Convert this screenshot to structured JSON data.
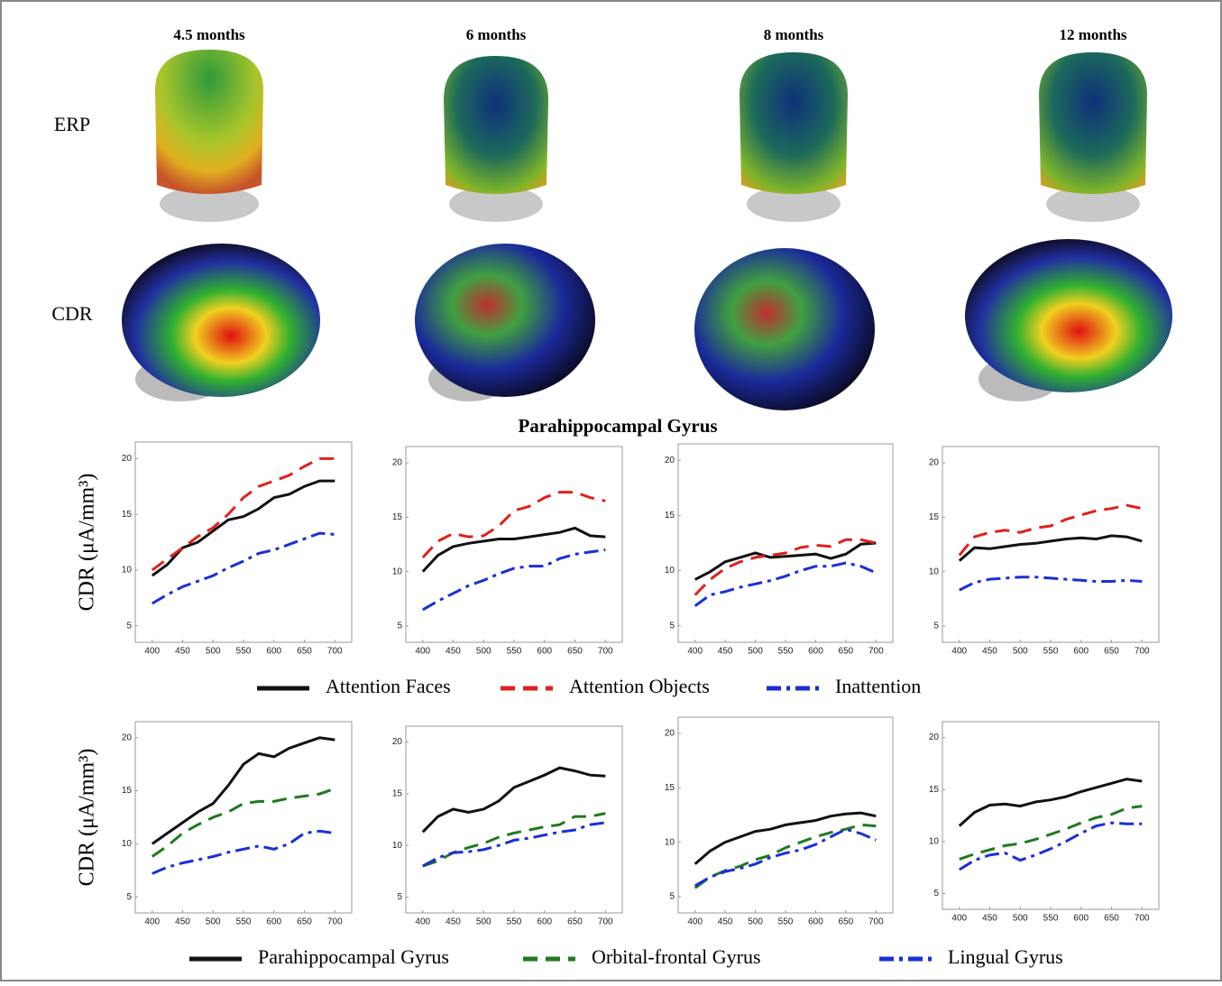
{
  "columns": [
    "4.5 months",
    "6 months",
    "8 months",
    "12 months"
  ],
  "row_labels": [
    "ERP",
    "CDR"
  ],
  "section_title": "Parahippocampal Gyrus",
  "chart_data": [
    {
      "type": "line",
      "y_label": "CDR (μA/mm³)",
      "x": [
        400,
        425,
        450,
        475,
        500,
        525,
        550,
        575,
        600,
        625,
        650,
        675,
        700
      ],
      "xlim": [
        390,
        710
      ],
      "xticks": [
        400,
        450,
        500,
        550,
        600,
        650,
        700
      ],
      "ylim": [
        4,
        21
      ],
      "yticks": [
        5,
        10,
        15,
        20
      ],
      "series": [
        {
          "name": "Attention Faces",
          "color": "#111111",
          "style": "solid",
          "values": [
            9.5,
            10.5,
            12,
            12.5,
            13.5,
            14.5,
            14.8,
            15.5,
            16.5,
            16.8,
            17.5,
            18,
            18
          ]
        },
        {
          "name": "Attention Objects",
          "color": "#e0201c",
          "style": "dashed",
          "values": [
            10,
            11,
            12,
            13,
            13.8,
            15,
            16.5,
            17.5,
            18,
            18.5,
            19.3,
            20,
            20
          ]
        },
        {
          "name": "Inattention",
          "color": "#1a2fd6",
          "style": "dashdot",
          "values": [
            7,
            7.8,
            8.5,
            9,
            9.5,
            10.2,
            10.8,
            11.5,
            11.8,
            12.3,
            12.8,
            13.3,
            13.2
          ]
        }
      ]
    },
    {
      "type": "line",
      "x": [
        400,
        425,
        450,
        475,
        500,
        525,
        550,
        575,
        600,
        625,
        650,
        675,
        700
      ],
      "xlim": [
        390,
        710
      ],
      "xticks": [
        400,
        450,
        500,
        550,
        600,
        650,
        700
      ],
      "ylim": [
        4,
        21
      ],
      "yticks": [
        5,
        10,
        15,
        20
      ],
      "series": [
        {
          "color": "#111111",
          "style": "solid",
          "values": [
            10,
            11.5,
            12.3,
            12.6,
            12.8,
            13,
            13,
            13.2,
            13.4,
            13.6,
            14,
            13.3,
            13.2
          ]
        },
        {
          "color": "#e0201c",
          "style": "dashed",
          "values": [
            11.3,
            12.8,
            13.5,
            13.2,
            13.3,
            14.2,
            15.6,
            16,
            16.8,
            17.3,
            17.3,
            16.8,
            16.5
          ]
        },
        {
          "color": "#1a2fd6",
          "style": "dashdot",
          "values": [
            6.5,
            7.3,
            8,
            8.7,
            9.2,
            9.8,
            10.3,
            10.5,
            10.5,
            11.2,
            11.6,
            11.8,
            12
          ]
        }
      ]
    },
    {
      "type": "line",
      "x": [
        400,
        425,
        450,
        475,
        500,
        525,
        550,
        575,
        600,
        625,
        650,
        675,
        700
      ],
      "xlim": [
        390,
        710
      ],
      "xticks": [
        400,
        450,
        500,
        550,
        600,
        650,
        700
      ],
      "ylim": [
        4,
        21
      ],
      "yticks": [
        5,
        10,
        15,
        20
      ],
      "series": [
        {
          "color": "#111111",
          "style": "solid",
          "values": [
            9.2,
            9.9,
            10.8,
            11.2,
            11.6,
            11.2,
            11.3,
            11.4,
            11.5,
            11.1,
            11.5,
            12.4,
            12.5
          ]
        },
        {
          "color": "#e0201c",
          "style": "dashed",
          "values": [
            7.8,
            9.2,
            10.2,
            10.8,
            11.2,
            11.4,
            11.6,
            12.1,
            12.3,
            12.2,
            12.8,
            12.8,
            12.5
          ]
        },
        {
          "color": "#1a2fd6",
          "style": "dashdot",
          "values": [
            6.8,
            7.8,
            8.1,
            8.5,
            8.8,
            9.1,
            9.5,
            10,
            10.4,
            10.4,
            10.7,
            10.4,
            9.8
          ]
        }
      ]
    },
    {
      "type": "line",
      "x": [
        400,
        425,
        450,
        475,
        500,
        525,
        550,
        575,
        600,
        625,
        650,
        675,
        700
      ],
      "xlim": [
        390,
        710
      ],
      "xticks": [
        400,
        450,
        500,
        550,
        600,
        650,
        700
      ],
      "ylim": [
        4,
        21
      ],
      "yticks": [
        5,
        10,
        15,
        20
      ],
      "series": [
        {
          "color": "#111111",
          "style": "solid",
          "values": [
            11,
            12.2,
            12.1,
            12.3,
            12.5,
            12.6,
            12.8,
            13,
            13.1,
            13,
            13.3,
            13.2,
            12.8
          ]
        },
        {
          "color": "#e0201c",
          "style": "dashed",
          "values": [
            11.5,
            13.2,
            13.6,
            13.8,
            13.6,
            14,
            14.2,
            14.8,
            15.2,
            15.6,
            15.8,
            16.1,
            15.8
          ]
        },
        {
          "color": "#1a2fd6",
          "style": "dashdot",
          "values": [
            8.3,
            9,
            9.3,
            9.4,
            9.5,
            9.5,
            9.4,
            9.3,
            9.2,
            9.1,
            9.1,
            9.2,
            9.1
          ]
        }
      ]
    },
    {
      "type": "line",
      "y_label": "CDR (μA/mm³)",
      "x": [
        400,
        425,
        450,
        475,
        500,
        525,
        550,
        575,
        600,
        625,
        650,
        675,
        700
      ],
      "xlim": [
        390,
        710
      ],
      "xticks": [
        400,
        450,
        500,
        550,
        600,
        650,
        700
      ],
      "ylim": [
        4,
        21
      ],
      "yticks": [
        5,
        10,
        15,
        20
      ],
      "series": [
        {
          "name": "Parahippocampal Gyrus",
          "color": "#111111",
          "style": "solid",
          "values": [
            10,
            11,
            12,
            13,
            13.8,
            15.5,
            17.5,
            18.5,
            18.2,
            19,
            19.5,
            20,
            19.8
          ]
        },
        {
          "name": "Orbital-frontal Gyrus",
          "color": "#1f7a1f",
          "style": "dashed",
          "values": [
            8.8,
            9.8,
            11,
            11.8,
            12.5,
            13,
            13.8,
            14,
            14,
            14.3,
            14.5,
            14.7,
            15.2
          ]
        },
        {
          "name": "Lingual Gyrus",
          "color": "#1a2fd6",
          "style": "dashdot",
          "values": [
            7.2,
            7.8,
            8.2,
            8.5,
            8.8,
            9.2,
            9.5,
            9.8,
            9.5,
            10,
            11,
            11.2,
            11
          ]
        }
      ]
    },
    {
      "type": "line",
      "x": [
        400,
        425,
        450,
        475,
        500,
        525,
        550,
        575,
        600,
        625,
        650,
        675,
        700
      ],
      "xlim": [
        390,
        710
      ],
      "xticks": [
        400,
        450,
        500,
        550,
        600,
        650,
        700
      ],
      "ylim": [
        4,
        21
      ],
      "yticks": [
        5,
        10,
        15,
        20
      ],
      "series": [
        {
          "color": "#111111",
          "style": "solid",
          "values": [
            11.3,
            12.8,
            13.5,
            13.2,
            13.5,
            14.3,
            15.6,
            16.2,
            16.8,
            17.5,
            17.2,
            16.8,
            16.7
          ]
        },
        {
          "color": "#1f7a1f",
          "style": "dashed",
          "values": [
            8,
            8.5,
            9.3,
            9.8,
            10.2,
            10.8,
            11.2,
            11.5,
            11.8,
            12,
            12.8,
            12.8,
            13.1
          ]
        },
        {
          "color": "#1a2fd6",
          "style": "dashdot",
          "values": [
            8,
            8.8,
            9.3,
            9.4,
            9.6,
            10,
            10.5,
            10.7,
            11,
            11.3,
            11.5,
            12,
            12.2
          ]
        }
      ]
    },
    {
      "type": "line",
      "x": [
        400,
        425,
        450,
        475,
        500,
        525,
        550,
        575,
        600,
        625,
        650,
        675,
        700
      ],
      "xlim": [
        390,
        710
      ],
      "xticks": [
        400,
        450,
        500,
        550,
        600,
        650,
        700
      ],
      "ylim": [
        4,
        21
      ],
      "yticks": [
        5,
        10,
        15,
        20
      ],
      "series": [
        {
          "color": "#111111",
          "style": "solid",
          "values": [
            8,
            9.2,
            10,
            10.5,
            11,
            11.2,
            11.6,
            11.8,
            12,
            12.4,
            12.6,
            12.7,
            12.4
          ]
        },
        {
          "color": "#1f7a1f",
          "style": "dashed",
          "values": [
            5.8,
            6.8,
            7.4,
            7.8,
            8.4,
            8.8,
            9.5,
            10,
            10.5,
            10.9,
            11.2,
            11.6,
            11.5
          ]
        },
        {
          "color": "#1a2fd6",
          "style": "dashdot",
          "values": [
            6,
            6.8,
            7.3,
            7.6,
            8,
            8.6,
            9,
            9.3,
            9.8,
            10.5,
            11.2,
            10.8,
            10.2
          ]
        }
      ]
    },
    {
      "type": "line",
      "x": [
        400,
        425,
        450,
        475,
        500,
        525,
        550,
        575,
        600,
        625,
        650,
        675,
        700
      ],
      "xlim": [
        390,
        710
      ],
      "xticks": [
        400,
        450,
        500,
        550,
        600,
        650,
        700
      ],
      "ylim": [
        4,
        21
      ],
      "yticks": [
        5,
        10,
        15,
        20
      ],
      "series": [
        {
          "color": "#111111",
          "style": "solid",
          "values": [
            11.5,
            12.8,
            13.5,
            13.6,
            13.4,
            13.8,
            14,
            14.3,
            14.8,
            15.2,
            15.6,
            16,
            15.8
          ]
        },
        {
          "color": "#1f7a1f",
          "style": "dashed",
          "values": [
            8.3,
            8.8,
            9.2,
            9.6,
            9.8,
            10.2,
            10.7,
            11.2,
            11.8,
            12.3,
            12.6,
            13.2,
            13.4
          ]
        },
        {
          "color": "#1a2fd6",
          "style": "dashdot",
          "values": [
            7.3,
            8.2,
            8.7,
            8.9,
            8.2,
            8.7,
            9.3,
            10,
            10.8,
            11.5,
            11.8,
            11.7,
            11.7
          ]
        }
      ]
    }
  ]
}
